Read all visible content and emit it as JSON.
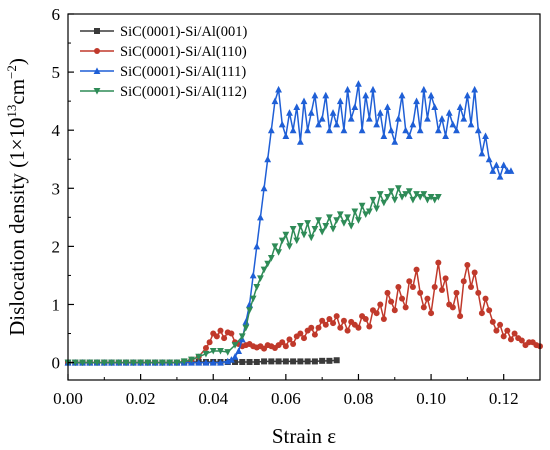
{
  "chart_data": {
    "type": "line",
    "xlabel": "Strain ε",
    "ylabel_prefix": "Dislocation density (1×10",
    "ylabel_exp1": "13",
    "ylabel_mid": "cm",
    "ylabel_exp2": "−2",
    "ylabel_suffix": ")",
    "xlim": [
      0.0,
      0.13
    ],
    "ylim": [
      -0.3,
      6
    ],
    "xticks": [
      0.0,
      0.02,
      0.04,
      0.06,
      0.08,
      0.1,
      0.12
    ],
    "xtick_labels": [
      "0.00",
      "0.02",
      "0.04",
      "0.06",
      "0.08",
      "0.10",
      "0.12"
    ],
    "yticks": [
      0,
      1,
      2,
      3,
      4,
      5,
      6
    ],
    "ytick_labels": [
      "0",
      "1",
      "2",
      "3",
      "4",
      "5",
      "6"
    ],
    "legend_position": "top-left",
    "series": [
      {
        "name": "SiC(0001)-Si/Al(001)",
        "color": "#3a3a3a",
        "marker": "square",
        "x": [
          0.0,
          0.002,
          0.004,
          0.006,
          0.008,
          0.01,
          0.012,
          0.014,
          0.016,
          0.018,
          0.02,
          0.022,
          0.024,
          0.026,
          0.028,
          0.03,
          0.032,
          0.034,
          0.036,
          0.038,
          0.04,
          0.042,
          0.044,
          0.046,
          0.048,
          0.05,
          0.052,
          0.054,
          0.056,
          0.058,
          0.06,
          0.062,
          0.064,
          0.066,
          0.068,
          0.07,
          0.072,
          0.074
        ],
        "y": [
          0.0,
          0.0,
          0.0,
          0.0,
          0.0,
          0.0,
          0.0,
          0.0,
          0.0,
          0.0,
          0.0,
          0.0,
          0.0,
          0.0,
          0.0,
          0.0,
          0.0,
          0.01,
          0.01,
          0.01,
          0.01,
          0.01,
          0.01,
          0.01,
          0.01,
          0.01,
          0.01,
          0.02,
          0.02,
          0.02,
          0.02,
          0.02,
          0.02,
          0.02,
          0.02,
          0.03,
          0.03,
          0.04
        ]
      },
      {
        "name": "SiC(0001)-Si/Al(110)",
        "color": "#c0392b",
        "marker": "circle",
        "x": [
          0.0,
          0.002,
          0.004,
          0.006,
          0.008,
          0.01,
          0.012,
          0.014,
          0.016,
          0.018,
          0.02,
          0.022,
          0.024,
          0.026,
          0.028,
          0.03,
          0.032,
          0.034,
          0.036,
          0.038,
          0.039,
          0.04,
          0.041,
          0.042,
          0.043,
          0.044,
          0.045,
          0.046,
          0.047,
          0.048,
          0.049,
          0.05,
          0.051,
          0.052,
          0.053,
          0.054,
          0.055,
          0.056,
          0.057,
          0.058,
          0.059,
          0.06,
          0.061,
          0.062,
          0.063,
          0.064,
          0.065,
          0.066,
          0.067,
          0.068,
          0.069,
          0.07,
          0.071,
          0.072,
          0.073,
          0.074,
          0.075,
          0.076,
          0.077,
          0.078,
          0.079,
          0.08,
          0.081,
          0.082,
          0.083,
          0.084,
          0.085,
          0.086,
          0.087,
          0.088,
          0.089,
          0.09,
          0.091,
          0.092,
          0.093,
          0.094,
          0.095,
          0.096,
          0.097,
          0.098,
          0.099,
          0.1,
          0.101,
          0.102,
          0.103,
          0.104,
          0.105,
          0.106,
          0.107,
          0.108,
          0.109,
          0.11,
          0.111,
          0.112,
          0.113,
          0.114,
          0.115,
          0.116,
          0.117,
          0.118,
          0.119,
          0.12,
          0.121,
          0.122,
          0.123,
          0.124,
          0.125,
          0.126,
          0.127,
          0.128,
          0.129,
          0.13
        ],
        "y": [
          0.0,
          0.0,
          0.0,
          0.0,
          0.0,
          0.0,
          0.0,
          0.0,
          0.0,
          0.0,
          0.0,
          0.0,
          0.0,
          0.0,
          0.0,
          0.0,
          0.02,
          0.05,
          0.1,
          0.25,
          0.35,
          0.5,
          0.45,
          0.55,
          0.42,
          0.52,
          0.5,
          0.35,
          0.32,
          0.28,
          0.3,
          0.32,
          0.28,
          0.26,
          0.28,
          0.24,
          0.3,
          0.28,
          0.25,
          0.3,
          0.35,
          0.28,
          0.4,
          0.32,
          0.45,
          0.5,
          0.42,
          0.55,
          0.6,
          0.48,
          0.6,
          0.72,
          0.65,
          0.75,
          0.68,
          0.8,
          0.6,
          0.72,
          0.55,
          0.7,
          0.65,
          0.6,
          0.8,
          0.75,
          0.62,
          0.9,
          0.85,
          1.0,
          0.75,
          1.2,
          1.05,
          0.9,
          1.3,
          1.1,
          0.95,
          1.4,
          1.3,
          1.6,
          1.2,
          0.95,
          1.1,
          0.85,
          1.3,
          1.72,
          1.25,
          1.45,
          1.0,
          0.95,
          1.2,
          0.8,
          1.4,
          1.68,
          1.3,
          1.55,
          1.2,
          0.85,
          1.1,
          0.9,
          0.7,
          0.55,
          0.65,
          0.45,
          0.55,
          0.4,
          0.5,
          0.42,
          0.38,
          0.3,
          0.35,
          0.35,
          0.3,
          0.28
        ]
      },
      {
        "name": "SiC(0001)-Si/Al(111)",
        "color": "#1f5fd6",
        "marker": "triangle-up",
        "x": [
          0.0,
          0.002,
          0.004,
          0.006,
          0.008,
          0.01,
          0.012,
          0.014,
          0.016,
          0.018,
          0.02,
          0.022,
          0.024,
          0.026,
          0.028,
          0.03,
          0.032,
          0.034,
          0.036,
          0.038,
          0.04,
          0.042,
          0.044,
          0.045,
          0.046,
          0.047,
          0.048,
          0.049,
          0.05,
          0.051,
          0.052,
          0.053,
          0.054,
          0.055,
          0.056,
          0.057,
          0.058,
          0.059,
          0.06,
          0.061,
          0.062,
          0.063,
          0.064,
          0.065,
          0.066,
          0.067,
          0.068,
          0.069,
          0.07,
          0.071,
          0.072,
          0.073,
          0.074,
          0.075,
          0.076,
          0.077,
          0.078,
          0.079,
          0.08,
          0.081,
          0.082,
          0.083,
          0.084,
          0.085,
          0.086,
          0.087,
          0.088,
          0.089,
          0.09,
          0.091,
          0.092,
          0.093,
          0.094,
          0.095,
          0.096,
          0.097,
          0.098,
          0.099,
          0.1,
          0.101,
          0.102,
          0.103,
          0.104,
          0.105,
          0.106,
          0.107,
          0.108,
          0.109,
          0.11,
          0.111,
          0.112,
          0.113,
          0.114,
          0.115,
          0.116,
          0.117,
          0.118,
          0.119,
          0.12,
          0.121,
          0.122
        ],
        "y": [
          0.0,
          0.0,
          0.0,
          0.0,
          0.0,
          0.0,
          0.0,
          0.0,
          0.0,
          0.0,
          0.0,
          0.0,
          0.0,
          0.0,
          0.0,
          0.0,
          0.0,
          0.0,
          0.0,
          0.0,
          0.0,
          0.0,
          0.02,
          0.05,
          0.1,
          0.2,
          0.4,
          0.7,
          1.0,
          1.5,
          2.0,
          2.5,
          3.0,
          3.5,
          4.0,
          4.5,
          4.7,
          4.1,
          3.9,
          4.3,
          4.0,
          4.4,
          3.8,
          4.5,
          4.0,
          4.3,
          4.6,
          4.1,
          4.2,
          4.6,
          4.0,
          4.3,
          4.1,
          4.5,
          4.0,
          4.7,
          4.2,
          4.4,
          4.8,
          4.0,
          4.6,
          4.2,
          4.7,
          4.1,
          4.3,
          3.9,
          4.4,
          4.0,
          3.8,
          4.2,
          4.6,
          4.0,
          3.9,
          4.1,
          4.5,
          4.0,
          4.7,
          4.2,
          4.6,
          4.4,
          4.0,
          4.2,
          3.9,
          4.3,
          4.1,
          4.0,
          4.4,
          4.2,
          4.6,
          4.1,
          4.7,
          4.0,
          3.6,
          3.9,
          3.5,
          3.3,
          3.4,
          3.2,
          3.4,
          3.3,
          3.3
        ]
      },
      {
        "name": "SiC(0001)-Si/Al(112)",
        "color": "#2e8b57",
        "marker": "triangle-down",
        "x": [
          0.0,
          0.002,
          0.004,
          0.006,
          0.008,
          0.01,
          0.012,
          0.014,
          0.016,
          0.018,
          0.02,
          0.022,
          0.024,
          0.026,
          0.028,
          0.03,
          0.032,
          0.034,
          0.036,
          0.038,
          0.04,
          0.042,
          0.044,
          0.046,
          0.048,
          0.049,
          0.05,
          0.051,
          0.052,
          0.053,
          0.054,
          0.055,
          0.056,
          0.057,
          0.058,
          0.059,
          0.06,
          0.061,
          0.062,
          0.063,
          0.064,
          0.065,
          0.066,
          0.067,
          0.068,
          0.069,
          0.07,
          0.071,
          0.072,
          0.073,
          0.074,
          0.075,
          0.076,
          0.077,
          0.078,
          0.079,
          0.08,
          0.081,
          0.082,
          0.083,
          0.084,
          0.085,
          0.086,
          0.087,
          0.088,
          0.089,
          0.09,
          0.091,
          0.092,
          0.093,
          0.094,
          0.095,
          0.096,
          0.097,
          0.098,
          0.099,
          0.1,
          0.101,
          0.102
        ],
        "y": [
          0.0,
          0.0,
          0.0,
          0.0,
          0.0,
          0.0,
          0.0,
          0.0,
          0.0,
          0.0,
          0.0,
          0.0,
          0.0,
          0.0,
          0.0,
          0.0,
          0.02,
          0.05,
          0.1,
          0.15,
          0.2,
          0.2,
          0.18,
          0.3,
          0.45,
          0.6,
          0.9,
          1.1,
          1.3,
          1.45,
          1.6,
          1.7,
          1.8,
          2.0,
          1.9,
          2.1,
          2.2,
          2.0,
          2.3,
          2.1,
          2.35,
          2.2,
          2.4,
          2.15,
          2.3,
          2.45,
          2.25,
          2.35,
          2.5,
          2.3,
          2.45,
          2.55,
          2.4,
          2.5,
          2.35,
          2.6,
          2.45,
          2.7,
          2.55,
          2.6,
          2.8,
          2.65,
          2.9,
          2.75,
          2.85,
          2.95,
          2.8,
          3.0,
          2.85,
          2.9,
          2.95,
          2.8,
          2.9,
          2.85,
          2.9,
          2.8,
          2.85,
          2.8,
          2.85
        ]
      }
    ]
  }
}
